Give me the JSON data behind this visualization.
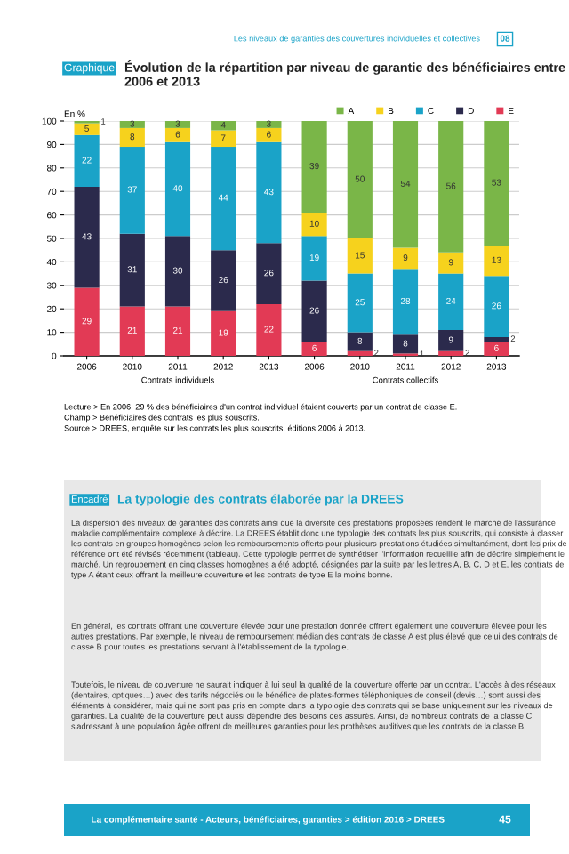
{
  "chart_data": {
    "type": "bar",
    "stacked": true,
    "title": "Évolution de la répartition par niveau de garantie des bénéficiaires entre 2006 et 2013",
    "ylabel": "En %",
    "categories": [
      "2006",
      "2010",
      "2011",
      "2012",
      "2013",
      "2006",
      "2010",
      "2011",
      "2012",
      "2013"
    ],
    "series": [
      {
        "name": "E",
        "color": "#e23a55",
        "values": [
          29,
          21,
          21,
          19,
          22,
          6,
          2,
          1,
          2,
          6
        ]
      },
      {
        "name": "D",
        "color": "#2b2a4c",
        "values": [
          43,
          31,
          30,
          26,
          26,
          26,
          8,
          8,
          9,
          2
        ]
      },
      {
        "name": "C",
        "color": "#1aa3c8",
        "values": [
          22,
          37,
          40,
          44,
          43,
          19,
          25,
          28,
          24,
          26
        ]
      },
      {
        "name": "B",
        "color": "#f6d21d",
        "values": [
          5,
          8,
          6,
          7,
          6,
          10,
          15,
          9,
          9,
          13
        ]
      },
      {
        "name": "A",
        "color": "#7ab648",
        "values": [
          1,
          3,
          3,
          4,
          3,
          39,
          50,
          54,
          56,
          53
        ]
      }
    ],
    "ylim": [
      0,
      100
    ],
    "yticks": [
      0,
      10,
      20,
      30,
      40,
      50,
      60,
      70,
      80,
      90,
      100
    ],
    "grid": "y",
    "legend": "top right",
    "data_labels": true,
    "annotations": [
      "Les niveaux de garanties des couvertures individuelles et collectives",
      "08",
      "Graphique",
      "Contrats individuels",
      "Contrats collectifs",
      "Lecture > En 2006, 29 % des bénéficiaires d'un contrat individuel étaient couverts par un contrat de classe E.",
      "Champ > Bénéficiaires des contrats les plus souscrits.",
      "Source > DREES, enquête sur les contrats les plus souscrits, éditions 2006 à 2013.",
      "Encadré",
      "La typologie des contrats élaborée par la DREES",
      "La dispersion des niveaux de garanties des contrats ainsi que la diversité des prestations proposées rendent le marché de l'assurance maladie complémentaire complexe à décrire. La DREES établit donc une typologie des contrats les plus souscrits, qui consiste à classer les contrats en groupes homogènes selon les remboursements offerts pour plusieurs prestations étudiées simultanément, dont les prix de référence ont été révisés récemment (tableau). Cette typologie permet de synthétiser l'information recueillie afin de décrire simplement le marché. Un regroupement en cinq classes homogènes a été adopté, désignées par la suite par les lettres A, B, C, D et E, les contrats de type A étant ceux offrant la meilleure couverture et les contrats de type E la moins bonne.",
      "En général, les contrats offrant une couverture élevée pour une prestation donnée offrent également une couverture élevée pour les autres prestations. Par exemple, le niveau de remboursement médian des contrats de classe A est plus élevé que celui des contrats de classe B pour toutes les prestations servant à l'établissement de la typologie.",
      "Toutefois, le niveau de couverture ne saurait indiquer à lui seul la qualité de la couverture offerte par un contrat. L'accès à des réseaux (dentaires, optiques…) avec des tarifs négociés ou le bénéfice de plates-formes téléphoniques de conseil (devis…) sont aussi des éléments à considérer, mais qui ne sont pas pris en compte dans la typologie des contrats qui se base uniquement sur les niveaux de garanties. La qualité de la couverture peut aussi dépendre des besoins des assurés. Ainsi, de nombreux contrats de la classe C s'adressant à une population âgée offrent de meilleures garanties pour les prothèses auditives que les contrats de la classe B.",
      "La complémentaire santé - Acteurs, bénéficiaires, garanties > édition 2016 > DREES",
      "45"
    ]
  }
}
